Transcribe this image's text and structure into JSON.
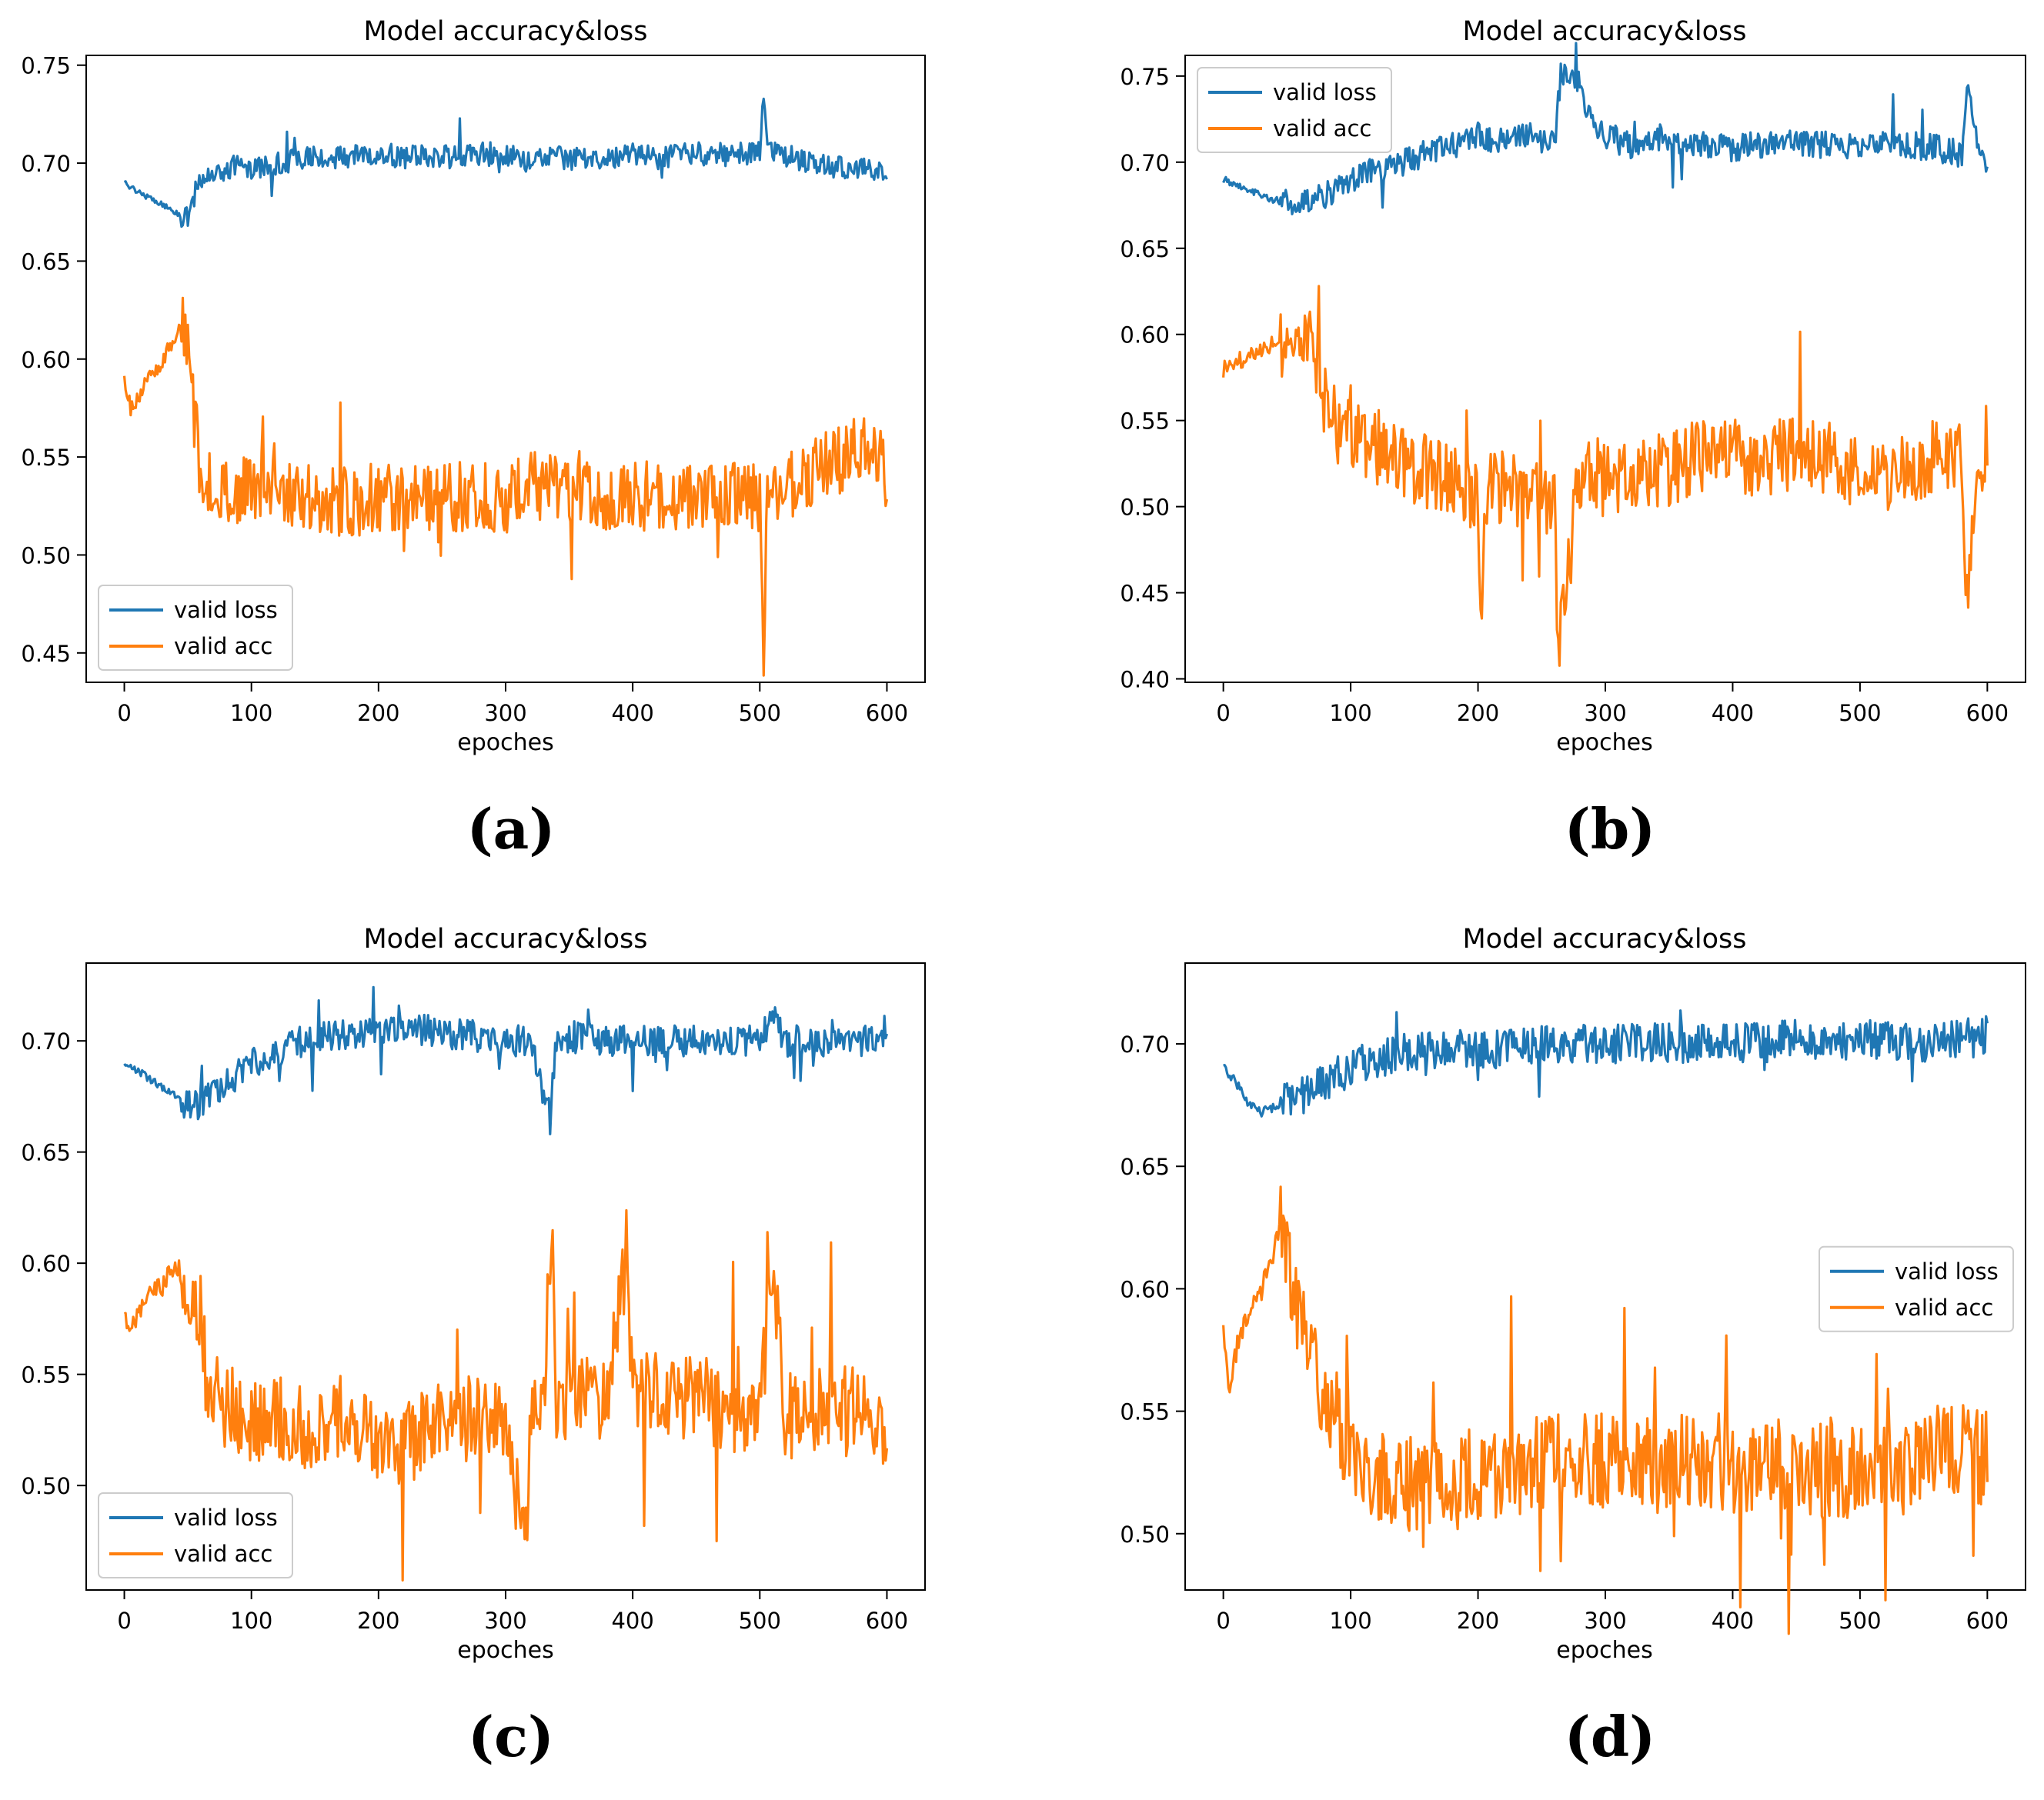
{
  "chart_data": [
    {
      "id": "a",
      "type": "line",
      "panel_label": "(a)",
      "title": "Model accuracy&loss",
      "xlabel": "epoches",
      "ylabel": "",
      "xlim": [
        -30,
        630
      ],
      "ylim": [
        0.435,
        0.755
      ],
      "xticks": [
        0,
        100,
        200,
        300,
        400,
        500,
        600
      ],
      "yticks": [
        0.45,
        0.5,
        0.55,
        0.6,
        0.65,
        0.7,
        0.75
      ],
      "ytick_labels": [
        "0.45",
        "0.50",
        "0.55",
        "0.60",
        "0.65",
        "0.70",
        "0.75"
      ],
      "legend_position": "lower-left",
      "series": [
        {
          "name": "valid loss",
          "color": "#1f77b4",
          "x": [
            0,
            10,
            20,
            30,
            40,
            48,
            52,
            56,
            60,
            70,
            80,
            90,
            100,
            120,
            140,
            160,
            180,
            200,
            220,
            240,
            260,
            280,
            300,
            320,
            340,
            360,
            380,
            400,
            420,
            440,
            460,
            480,
            500,
            503,
            506,
            520,
            540,
            560,
            580,
            600
          ],
          "y": [
            0.69,
            0.686,
            0.682,
            0.679,
            0.675,
            0.671,
            0.676,
            0.685,
            0.69,
            0.695,
            0.697,
            0.699,
            0.698,
            0.7,
            0.702,
            0.703,
            0.703,
            0.705,
            0.703,
            0.704,
            0.703,
            0.705,
            0.704,
            0.701,
            0.703,
            0.702,
            0.703,
            0.704,
            0.703,
            0.704,
            0.705,
            0.704,
            0.706,
            0.74,
            0.706,
            0.704,
            0.7,
            0.698,
            0.697,
            0.695
          ],
          "noise": 0.006
        },
        {
          "name": "valid acc",
          "color": "#ff7f0e",
          "x": [
            0,
            5,
            10,
            20,
            30,
            40,
            47,
            50,
            55,
            60,
            70,
            80,
            90,
            100,
            120,
            140,
            160,
            180,
            200,
            220,
            240,
            260,
            280,
            300,
            320,
            340,
            360,
            380,
            400,
            420,
            440,
            460,
            480,
            500,
            503,
            506,
            520,
            540,
            560,
            580,
            595,
            600
          ],
          "y": [
            0.59,
            0.575,
            0.58,
            0.59,
            0.6,
            0.61,
            0.618,
            0.6,
            0.57,
            0.545,
            0.535,
            0.53,
            0.53,
            0.535,
            0.535,
            0.53,
            0.527,
            0.527,
            0.53,
            0.53,
            0.528,
            0.53,
            0.53,
            0.528,
            0.535,
            0.535,
            0.535,
            0.53,
            0.533,
            0.528,
            0.53,
            0.528,
            0.53,
            0.528,
            0.452,
            0.53,
            0.535,
            0.54,
            0.548,
            0.553,
            0.555,
            0.53
          ],
          "noise": 0.018
        }
      ]
    },
    {
      "id": "b",
      "type": "line",
      "panel_label": "(b)",
      "title": "Model accuracy&loss",
      "xlabel": "epoches",
      "ylabel": "",
      "xlim": [
        -30,
        630
      ],
      "ylim": [
        0.398,
        0.762
      ],
      "xticks": [
        0,
        100,
        200,
        300,
        400,
        500,
        600
      ],
      "yticks": [
        0.4,
        0.45,
        0.5,
        0.55,
        0.6,
        0.65,
        0.7,
        0.75
      ],
      "ytick_labels": [
        "0.40",
        "0.45",
        "0.50",
        "0.55",
        "0.60",
        "0.65",
        "0.70",
        "0.75"
      ],
      "legend_position": "upper-left",
      "series": [
        {
          "name": "valid loss",
          "color": "#1f77b4",
          "x": [
            0,
            20,
            40,
            60,
            80,
            100,
            120,
            140,
            160,
            180,
            200,
            220,
            240,
            260,
            265,
            270,
            280,
            290,
            300,
            320,
            340,
            360,
            380,
            400,
            420,
            440,
            460,
            480,
            500,
            520,
            540,
            560,
            580,
            585,
            590,
            600
          ],
          "y": [
            0.69,
            0.684,
            0.678,
            0.676,
            0.68,
            0.69,
            0.695,
            0.7,
            0.705,
            0.71,
            0.715,
            0.712,
            0.715,
            0.71,
            0.752,
            0.75,
            0.745,
            0.72,
            0.715,
            0.71,
            0.715,
            0.71,
            0.71,
            0.708,
            0.71,
            0.712,
            0.71,
            0.71,
            0.708,
            0.712,
            0.71,
            0.708,
            0.705,
            0.748,
            0.715,
            0.7
          ],
          "noise": 0.008
        },
        {
          "name": "valid acc",
          "color": "#ff7f0e",
          "x": [
            0,
            10,
            20,
            40,
            60,
            65,
            70,
            80,
            90,
            100,
            120,
            140,
            160,
            180,
            200,
            203,
            206,
            220,
            240,
            260,
            263,
            266,
            275,
            280,
            290,
            300,
            320,
            340,
            360,
            380,
            400,
            420,
            440,
            460,
            480,
            500,
            520,
            540,
            560,
            580,
            583,
            590,
            600
          ],
          "y": [
            0.58,
            0.582,
            0.59,
            0.595,
            0.6,
            0.605,
            0.59,
            0.56,
            0.545,
            0.54,
            0.535,
            0.525,
            0.52,
            0.515,
            0.505,
            0.425,
            0.51,
            0.51,
            0.505,
            0.505,
            0.42,
            0.43,
            0.49,
            0.52,
            0.52,
            0.515,
            0.52,
            0.52,
            0.525,
            0.53,
            0.53,
            0.528,
            0.53,
            0.53,
            0.528,
            0.52,
            0.52,
            0.52,
            0.53,
            0.535,
            0.435,
            0.51,
            0.54
          ],
          "noise": 0.022
        }
      ]
    },
    {
      "id": "c",
      "type": "line",
      "panel_label": "(c)",
      "title": "Model accuracy&loss",
      "xlabel": "epoches",
      "ylabel": "",
      "xlim": [
        -30,
        630
      ],
      "ylim": [
        0.453,
        0.735
      ],
      "xticks": [
        0,
        100,
        200,
        300,
        400,
        500,
        600
      ],
      "yticks": [
        0.5,
        0.55,
        0.6,
        0.65,
        0.7
      ],
      "ytick_labels": [
        "0.50",
        "0.55",
        "0.60",
        "0.65",
        "0.70"
      ],
      "legend_position": "lower-left",
      "series": [
        {
          "name": "valid loss",
          "color": "#1f77b4",
          "x": [
            0,
            20,
            40,
            50,
            60,
            70,
            80,
            100,
            120,
            140,
            160,
            180,
            200,
            220,
            240,
            260,
            280,
            300,
            320,
            335,
            340,
            360,
            380,
            400,
            420,
            440,
            460,
            480,
            500,
            510,
            520,
            540,
            560,
            580,
            600
          ],
          "y": [
            0.69,
            0.683,
            0.675,
            0.671,
            0.672,
            0.675,
            0.68,
            0.69,
            0.695,
            0.7,
            0.702,
            0.703,
            0.705,
            0.705,
            0.705,
            0.703,
            0.702,
            0.7,
            0.7,
            0.665,
            0.7,
            0.702,
            0.7,
            0.7,
            0.7,
            0.7,
            0.7,
            0.7,
            0.7,
            0.712,
            0.7,
            0.7,
            0.7,
            0.7,
            0.705
          ],
          "noise": 0.007
        },
        {
          "name": "valid acc",
          "color": "#ff7f0e",
          "x": [
            0,
            5,
            10,
            20,
            30,
            40,
            50,
            55,
            60,
            65,
            70,
            80,
            100,
            120,
            140,
            160,
            180,
            200,
            220,
            240,
            260,
            280,
            300,
            315,
            320,
            330,
            337,
            340,
            360,
            380,
            395,
            400,
            420,
            440,
            460,
            480,
            500,
            510,
            520,
            540,
            560,
            580,
            600
          ],
          "y": [
            0.578,
            0.57,
            0.575,
            0.585,
            0.59,
            0.6,
            0.59,
            0.58,
            0.575,
            0.545,
            0.54,
            0.535,
            0.53,
            0.53,
            0.525,
            0.53,
            0.53,
            0.52,
            0.52,
            0.525,
            0.53,
            0.53,
            0.53,
            0.47,
            0.53,
            0.535,
            0.625,
            0.54,
            0.54,
            0.54,
            0.605,
            0.545,
            0.54,
            0.54,
            0.538,
            0.535,
            0.535,
            0.6,
            0.53,
            0.535,
            0.538,
            0.535,
            0.522
          ],
          "noise": 0.02
        }
      ]
    },
    {
      "id": "d",
      "type": "line",
      "panel_label": "(d)",
      "title": "Model accuracy&loss",
      "xlabel": "epoches",
      "ylabel": "",
      "xlim": [
        -30,
        630
      ],
      "ylim": [
        0.477,
        0.733
      ],
      "xticks": [
        0,
        100,
        200,
        300,
        400,
        500,
        600
      ],
      "yticks": [
        0.5,
        0.55,
        0.6,
        0.65,
        0.7
      ],
      "ytick_labels": [
        "0.50",
        "0.55",
        "0.60",
        "0.65",
        "0.70"
      ],
      "legend_position": "center-right",
      "series": [
        {
          "name": "valid loss",
          "color": "#1f77b4",
          "x": [
            0,
            10,
            20,
            30,
            40,
            60,
            80,
            100,
            120,
            140,
            160,
            180,
            200,
            220,
            240,
            260,
            280,
            300,
            320,
            340,
            360,
            380,
            400,
            420,
            440,
            460,
            480,
            500,
            520,
            540,
            560,
            580,
            600
          ],
          "y": [
            0.69,
            0.684,
            0.676,
            0.672,
            0.674,
            0.678,
            0.684,
            0.69,
            0.694,
            0.696,
            0.697,
            0.698,
            0.698,
            0.698,
            0.699,
            0.7,
            0.7,
            0.7,
            0.7,
            0.701,
            0.7,
            0.701,
            0.7,
            0.701,
            0.702,
            0.702,
            0.701,
            0.702,
            0.701,
            0.7,
            0.701,
            0.702,
            0.704
          ],
          "noise": 0.008
        },
        {
          "name": "valid acc",
          "color": "#ff7f0e",
          "x": [
            0,
            5,
            10,
            20,
            30,
            40,
            45,
            50,
            55,
            60,
            70,
            80,
            100,
            120,
            140,
            160,
            180,
            200,
            220,
            240,
            260,
            280,
            300,
            320,
            340,
            360,
            380,
            400,
            420,
            440,
            460,
            480,
            500,
            520,
            540,
            560,
            580,
            600
          ],
          "y": [
            0.582,
            0.56,
            0.575,
            0.59,
            0.6,
            0.615,
            0.625,
            0.61,
            0.6,
            0.59,
            0.57,
            0.555,
            0.535,
            0.525,
            0.52,
            0.52,
            0.52,
            0.525,
            0.525,
            0.528,
            0.53,
            0.53,
            0.53,
            0.528,
            0.528,
            0.53,
            0.53,
            0.528,
            0.525,
            0.528,
            0.525,
            0.525,
            0.525,
            0.525,
            0.528,
            0.535,
            0.535,
            0.53
          ],
          "noise": 0.02
        }
      ]
    }
  ]
}
